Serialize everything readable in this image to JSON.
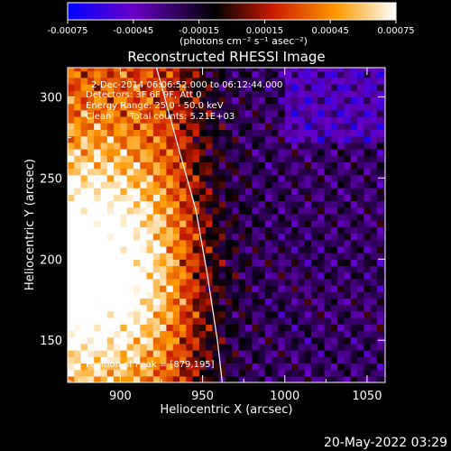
{
  "chart_data": {
    "type": "heatmap",
    "title": "Reconstructed RHESSI Image",
    "xlabel": "Heliocentric X (arcsec)",
    "ylabel": "Heliocentric Y (arcsec)",
    "xlim": [
      868,
      1061
    ],
    "ylim": [
      124,
      318
    ],
    "x_ticks": [
      "900",
      "950",
      "1000",
      "1050"
    ],
    "x_tick_values": [
      900,
      950,
      1000,
      1050
    ],
    "y_ticks": [
      "150",
      "200",
      "250",
      "300"
    ],
    "y_tick_values": [
      150,
      200,
      250,
      300
    ],
    "colorbar": {
      "range": [
        -0.00075,
        0.00075
      ],
      "tick_labels": [
        "-0.00075",
        "-0.00045",
        "-0.00015",
        "0.00015",
        "0.00045",
        "0.00075"
      ],
      "tick_values": [
        -0.00075,
        -0.00045,
        -0.00015,
        0.00015,
        0.00045,
        0.00075
      ],
      "units": "(photons cm⁻² s⁻¹ asec⁻²)",
      "colors": [
        "#0000ff",
        "#6a00c8",
        "#000000",
        "#c81800",
        "#ff9a00",
        "#ffffff"
      ]
    },
    "annotations": {
      "time": "2-Dec-2014 06:06:52.000 to 06:12:44.000",
      "detectors": "Detectors: 3F 6F 9F, Att 0",
      "energy": "Energy Range: 25.0 - 50.0 keV",
      "clean": "Clean",
      "total_counts": "Total counts: 5.21E+03",
      "peak": "Position of Peak = [879,195]"
    },
    "peak_position": [
      879,
      195
    ],
    "limb_curve": [
      [
        922,
        318
      ],
      [
        935,
        270
      ],
      [
        946,
        230
      ],
      [
        953,
        190
      ],
      [
        959,
        150
      ],
      [
        962,
        124
      ]
    ],
    "grid": false
  },
  "footer": {
    "timestamp": "20-May-2022 03:29"
  }
}
